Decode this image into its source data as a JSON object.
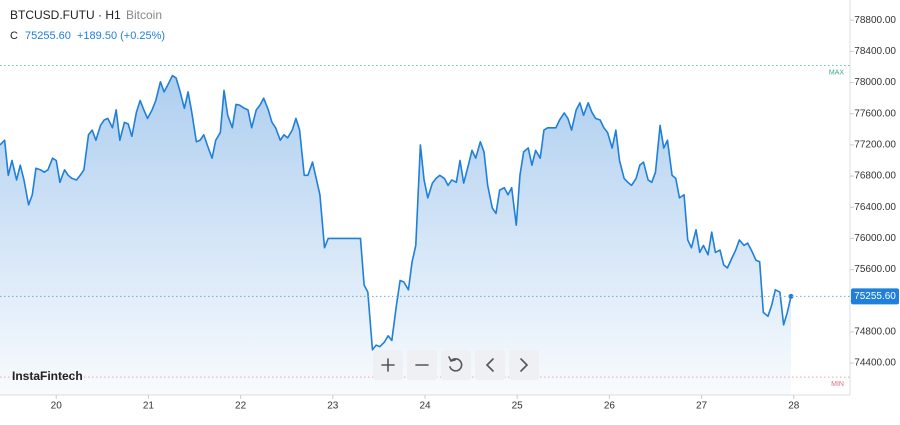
{
  "chart_data": {
    "type": "line",
    "symbol": "BTCUSD.FUTU · H1",
    "subtitle": "Bitcoin",
    "close_prefix": "C",
    "change": "+189.50 (+0.25%)",
    "price_tag": {
      "value": 75255.6,
      "label": "75255.60"
    },
    "max_line": {
      "value": 78220,
      "label": "MAX"
    },
    "min_line": {
      "value": 74220,
      "label": "MIN"
    },
    "watermark": "InstaFintech",
    "color": "#1f7fd9",
    "grid": false,
    "xlim": [
      19.39,
      28.61
    ],
    "xticks": [
      20,
      21,
      22,
      23,
      24,
      25,
      26,
      27,
      28
    ],
    "ylim": [
      73990,
      79060
    ],
    "yticks": [
      {
        "value": 74400,
        "label": "74400.00"
      },
      {
        "value": 74800,
        "label": "74800.00"
      },
      {
        "value": 75200,
        "label": "75200.00"
      },
      {
        "value": 75600,
        "label": "75600.00"
      },
      {
        "value": 76000,
        "label": "76000.00"
      },
      {
        "value": 76400,
        "label": "76400.00"
      },
      {
        "value": 76800,
        "label": "76800.00"
      },
      {
        "value": 77200,
        "label": "77200.00"
      },
      {
        "value": 77600,
        "label": "77600.00"
      },
      {
        "value": 78000,
        "label": "78000.00"
      },
      {
        "value": 78400,
        "label": "78400.00"
      },
      {
        "value": 78800,
        "label": "78800.00"
      }
    ],
    "x": [
      19.39,
      19.44,
      19.48,
      19.52,
      19.57,
      19.61,
      19.65,
      19.7,
      19.74,
      19.78,
      19.83,
      19.87,
      19.91,
      19.96,
      20.0,
      20.04,
      20.09,
      20.13,
      20.17,
      20.22,
      20.26,
      20.3,
      20.35,
      20.39,
      20.43,
      20.48,
      20.52,
      20.56,
      20.61,
      20.65,
      20.69,
      20.74,
      20.78,
      20.82,
      20.87,
      20.91,
      20.95,
      20.99,
      21.04,
      21.08,
      21.13,
      21.17,
      21.21,
      21.26,
      21.3,
      21.34,
      21.39,
      21.43,
      21.47,
      21.52,
      21.56,
      21.6,
      21.65,
      21.69,
      21.73,
      21.78,
      21.82,
      21.86,
      21.91,
      21.95,
      21.99,
      22.04,
      22.08,
      22.12,
      22.17,
      22.21,
      22.25,
      22.3,
      22.34,
      22.38,
      22.43,
      22.47,
      22.51,
      22.56,
      22.6,
      22.64,
      22.69,
      22.73,
      22.78,
      22.82,
      22.86,
      22.91,
      22.95,
      22.99,
      23.3,
      23.34,
      23.38,
      23.43,
      23.47,
      23.51,
      23.56,
      23.6,
      23.64,
      23.69,
      23.73,
      23.77,
      23.82,
      23.86,
      23.9,
      23.95,
      23.99,
      24.03,
      24.08,
      24.12,
      24.16,
      24.21,
      24.25,
      24.29,
      24.34,
      24.38,
      24.42,
      24.47,
      24.51,
      24.55,
      24.6,
      24.64,
      24.68,
      24.73,
      24.77,
      24.81,
      24.86,
      24.9,
      24.94,
      24.99,
      25.03,
      25.07,
      25.12,
      25.16,
      25.2,
      25.25,
      25.29,
      25.33,
      25.38,
      25.42,
      25.46,
      25.51,
      25.55,
      25.59,
      25.64,
      25.68,
      25.72,
      25.77,
      25.81,
      25.85,
      25.9,
      25.94,
      25.98,
      26.03,
      26.07,
      26.11,
      26.16,
      26.2,
      26.24,
      26.29,
      26.33,
      26.37,
      26.42,
      26.46,
      26.5,
      26.55,
      26.59,
      26.63,
      26.68,
      26.72,
      26.76,
      26.81,
      26.85,
      26.89,
      26.94,
      26.98,
      27.02,
      27.07,
      27.11,
      27.15,
      27.2,
      27.24,
      27.28,
      27.33,
      27.37,
      27.41,
      27.46,
      27.5,
      27.54,
      27.59,
      27.63,
      27.67,
      27.72,
      27.76,
      27.8,
      27.85,
      27.89,
      27.93,
      27.97
    ],
    "values": [
      77200,
      77260,
      76810,
      77000,
      76750,
      76940,
      76750,
      76430,
      76560,
      76900,
      76880,
      76850,
      76880,
      77030,
      77000,
      76720,
      76880,
      76810,
      76770,
      76750,
      76810,
      76880,
      77330,
      77390,
      77260,
      77450,
      77520,
      77540,
      77420,
      77650,
      77260,
      77490,
      77470,
      77310,
      77620,
      77770,
      77650,
      77540,
      77650,
      77770,
      78010,
      77880,
      77970,
      78090,
      78060,
      77900,
      77670,
      77880,
      77620,
      77240,
      77260,
      77330,
      77160,
      77030,
      77260,
      77360,
      77900,
      77580,
      77420,
      77720,
      77710,
      77670,
      77650,
      77420,
      77650,
      77710,
      77800,
      77650,
      77490,
      77420,
      77260,
      77330,
      77290,
      77390,
      77540,
      77390,
      76810,
      76810,
      76980,
      76770,
      76560,
      75880,
      76000,
      76000,
      76000,
      75400,
      75310,
      74570,
      74630,
      74610,
      74670,
      74750,
      74690,
      75140,
      75460,
      75440,
      75340,
      75700,
      75910,
      77200,
      76750,
      76520,
      76710,
      76770,
      76810,
      76770,
      76680,
      76750,
      76720,
      77000,
      76710,
      76940,
      77130,
      77030,
      77240,
      77110,
      76680,
      76390,
      76320,
      76620,
      76650,
      76560,
      76650,
      76170,
      76810,
      77110,
      77160,
      76940,
      77130,
      77030,
      77390,
      77420,
      77420,
      77420,
      77520,
      77610,
      77540,
      77390,
      77650,
      77740,
      77580,
      77740,
      77620,
      77540,
      77520,
      77420,
      77360,
      77160,
      77390,
      77000,
      76770,
      76720,
      76680,
      76770,
      76940,
      76980,
      76750,
      76720,
      76850,
      77450,
      77160,
      77260,
      76810,
      76770,
      76520,
      76560,
      75980,
      75880,
      76110,
      75820,
      75910,
      75790,
      76080,
      75820,
      75850,
      75660,
      75620,
      75750,
      75850,
      75980,
      75910,
      75940,
      75850,
      75720,
      75700,
      75050,
      75000,
      75140,
      75340,
      75310,
      74890,
      75050,
      75255.6
    ]
  }
}
